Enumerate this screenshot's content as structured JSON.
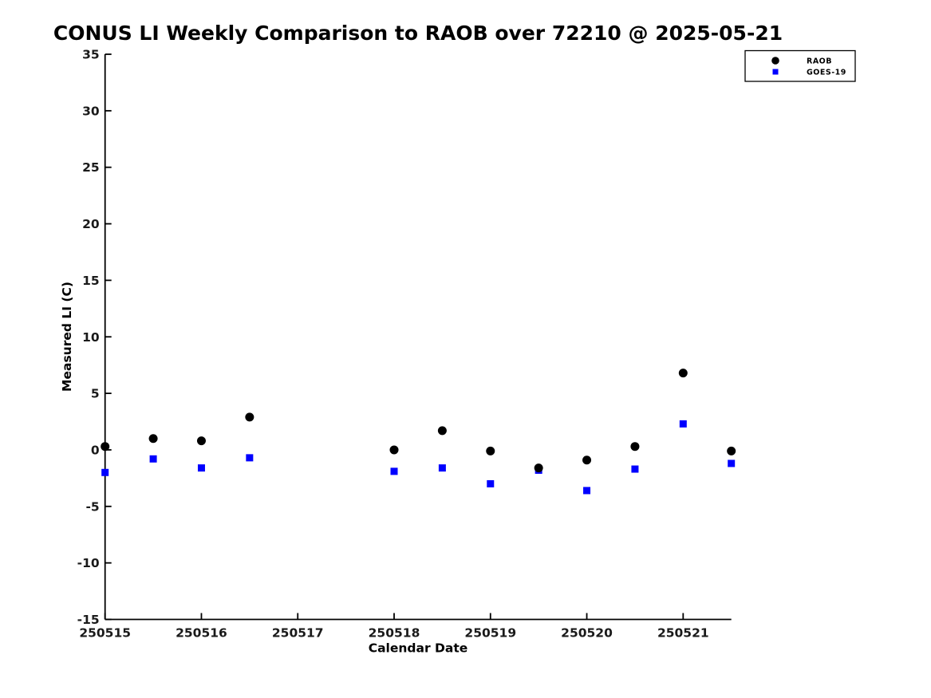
{
  "chart_data": {
    "type": "scatter",
    "title": "CONUS LI Weekly Comparison to RAOB over 72210 @ 2025-05-21",
    "xlabel": "Calendar Date",
    "ylabel": "Measured LI (C)",
    "xlim": [
      250515,
      250521.5
    ],
    "ylim": [
      -15,
      35
    ],
    "x_ticks": [
      250515,
      250516,
      250517,
      250518,
      250519,
      250520,
      250521
    ],
    "y_ticks": [
      -15,
      -10,
      -5,
      0,
      5,
      10,
      15,
      20,
      25,
      30,
      35
    ],
    "grid": false,
    "background_color": "#ffffff",
    "axis_color": "#000000",
    "x": [
      250515.0,
      250515.5,
      250516.0,
      250516.5,
      250518.0,
      250518.5,
      250519.0,
      250519.5,
      250520.0,
      250520.5,
      250521.0,
      250521.5
    ],
    "series": [
      {
        "name": "RAOB",
        "marker": "circle",
        "color": "#000000",
        "values": [
          0.3,
          1.0,
          0.8,
          2.9,
          0.0,
          1.7,
          -0.1,
          -1.6,
          -0.9,
          0.3,
          6.8,
          -0.1
        ]
      },
      {
        "name": "GOES-19",
        "marker": "square",
        "color": "#0000ff",
        "values": [
          -2.0,
          -0.8,
          -1.6,
          -0.7,
          -1.9,
          -1.6,
          -3.0,
          -1.8,
          -3.6,
          -1.7,
          2.3,
          -1.2
        ]
      }
    ],
    "legend": {
      "position": "top-right-outside",
      "entries": [
        "RAOB",
        "GOES-19"
      ]
    }
  }
}
